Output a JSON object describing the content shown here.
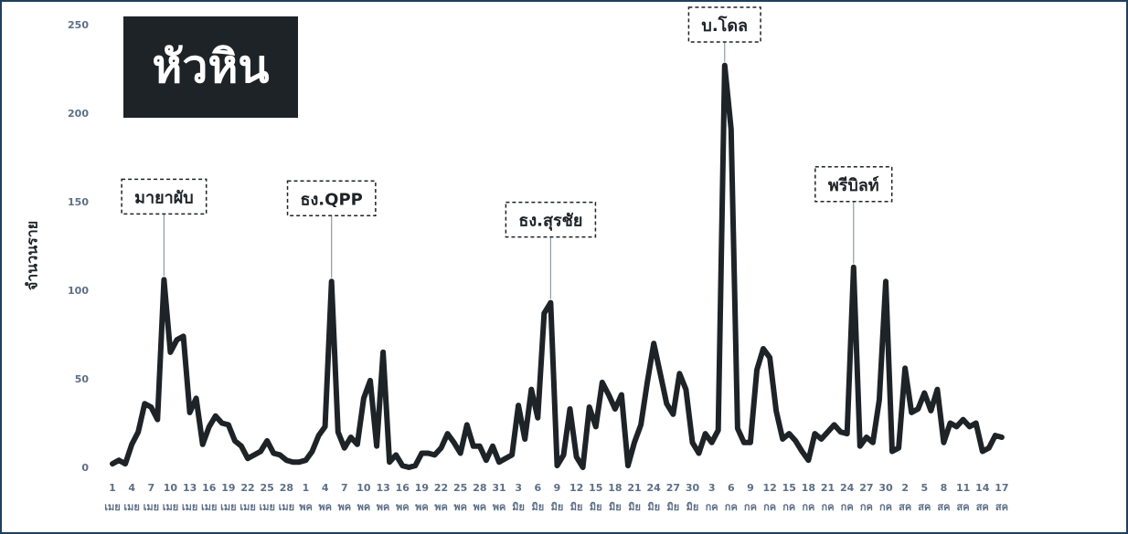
{
  "chart_data": {
    "type": "line",
    "title": "หัวหิน",
    "ylabel": "จำนวนราย",
    "ylim": [
      0,
      250
    ],
    "yticks": [
      0,
      50,
      100,
      150,
      200,
      250
    ],
    "x_tick_days": [
      "1",
      "4",
      "7",
      "10",
      "13",
      "16",
      "19",
      "22",
      "25",
      "28",
      "1",
      "4",
      "7",
      "10",
      "13",
      "16",
      "19",
      "22",
      "25",
      "28",
      "31",
      "3",
      "6",
      "9",
      "12",
      "15",
      "18",
      "21",
      "24",
      "27",
      "30",
      "3",
      "6",
      "9",
      "12",
      "15",
      "18",
      "21",
      "24",
      "27",
      "30",
      "2",
      "5",
      "8",
      "11",
      "14",
      "17"
    ],
    "x_tick_months": [
      "เมย",
      "เมย",
      "เมย",
      "เมย",
      "เมย",
      "เมย",
      "เมย",
      "เมย",
      "เมย",
      "เมย",
      "พค",
      "พค",
      "พค",
      "พค",
      "พค",
      "พค",
      "พค",
      "พค",
      "พค",
      "พค",
      "พค",
      "มิย",
      "มิย",
      "มิย",
      "มิย",
      "มิย",
      "มิย",
      "มิย",
      "มิย",
      "มิย",
      "มิย",
      "กค",
      "กค",
      "กค",
      "กค",
      "กค",
      "กค",
      "กค",
      "กค",
      "กค",
      "กค",
      "สค",
      "สค",
      "สค",
      "สค",
      "สค",
      "สค"
    ],
    "series": [
      {
        "values": [
          2,
          4,
          2,
          13,
          20,
          36,
          34,
          27,
          106,
          65,
          72,
          74,
          31,
          39,
          13,
          23,
          29,
          25,
          24,
          15,
          12,
          5,
          7,
          9,
          15,
          8,
          7,
          4,
          3,
          3,
          4,
          9,
          18,
          23,
          105,
          20,
          11,
          17,
          13,
          39,
          49,
          12,
          65,
          3,
          7,
          1,
          0,
          1,
          8,
          8,
          7,
          11,
          19,
          14,
          8,
          24,
          12,
          12,
          4,
          12,
          3,
          5,
          7,
          35,
          16,
          44,
          28,
          87,
          93,
          1,
          7,
          33,
          6,
          0,
          34,
          23,
          48,
          41,
          33,
          41,
          1,
          14,
          24,
          48,
          70,
          53,
          36,
          30,
          53,
          44,
          14,
          8,
          19,
          14,
          21,
          227,
          191,
          22,
          14,
          14,
          55,
          67,
          62,
          32,
          16,
          19,
          15,
          9,
          4,
          19,
          16,
          20,
          24,
          20,
          19,
          113,
          12,
          17,
          14,
          38,
          105,
          9,
          11,
          56,
          31,
          33,
          42,
          32,
          44,
          14,
          25,
          23,
          27,
          23,
          25,
          9,
          11,
          18,
          17
        ]
      }
    ],
    "annotations": [
      {
        "label": "มายาผับ",
        "x_index": 8
      },
      {
        "label": "ธง.QPP",
        "x_index": 34
      },
      {
        "label": "ธง.สุรชัย",
        "x_index": 68
      },
      {
        "label": "บ.โดล",
        "x_index": 95
      },
      {
        "label": "พรีบิลท์",
        "x_index": 115
      }
    ],
    "grid": false,
    "legend": "none"
  },
  "colors": {
    "line": "#1e2328",
    "title_bg": "#1e2328",
    "frame": "#1f3f5e",
    "tick": "#5d6f86"
  }
}
